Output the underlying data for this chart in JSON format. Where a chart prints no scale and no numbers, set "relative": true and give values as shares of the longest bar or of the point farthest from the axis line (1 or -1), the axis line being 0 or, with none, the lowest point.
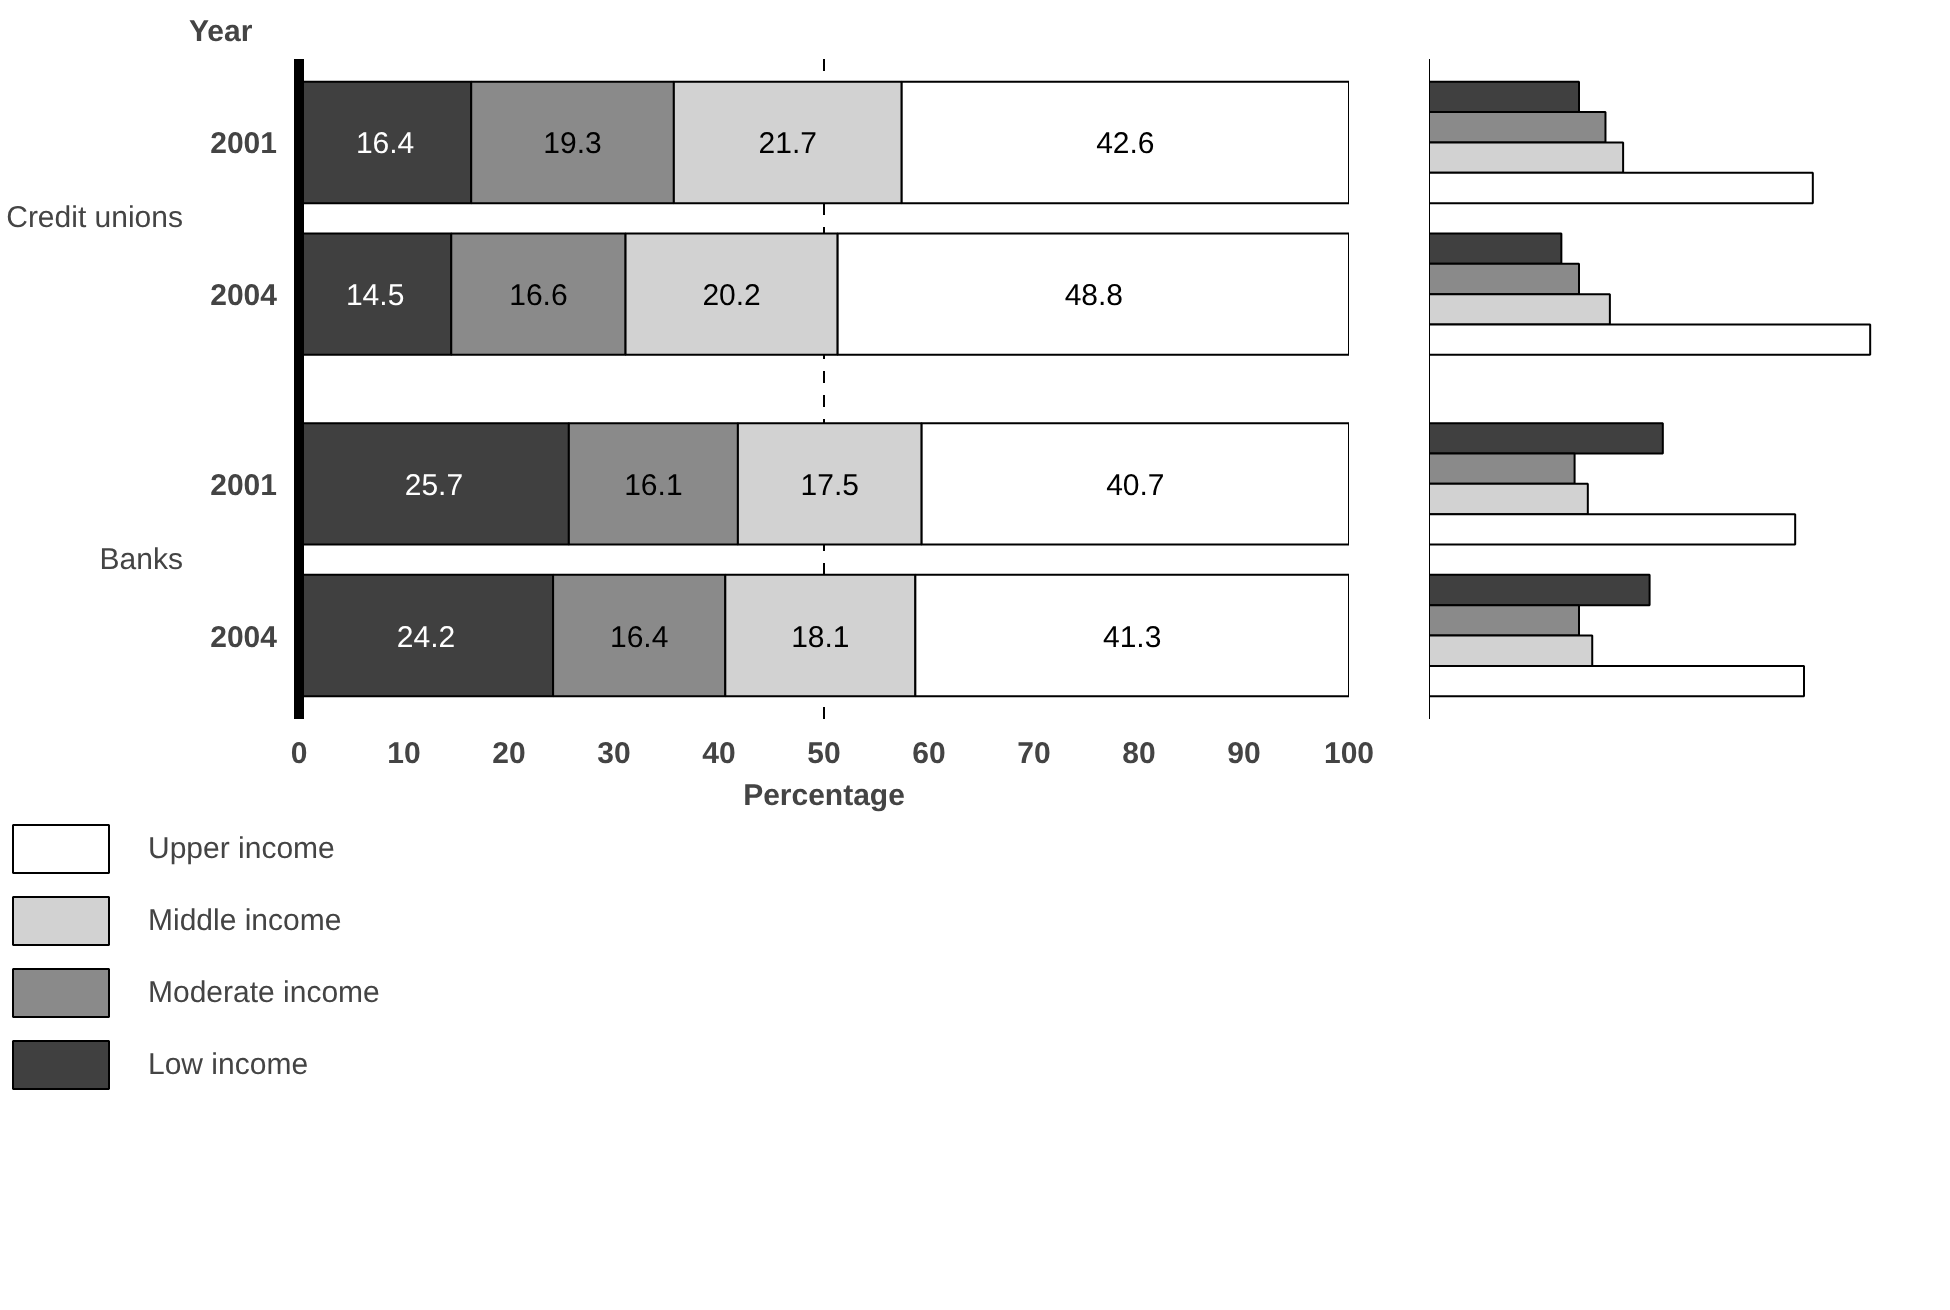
{
  "chart_data": [
    {
      "type": "bar",
      "orientation": "horizontal",
      "stacked": true,
      "ylabel": "Year",
      "xlabel": "Percentage",
      "categories": [
        "2001",
        "2004",
        "2001",
        "2004"
      ],
      "annotations": [
        "Credit unions",
        "Banks"
      ],
      "series": [
        {
          "name": "Low income",
          "color": "#404040",
          "values": [
            16.4,
            14.5,
            25.7,
            24.2
          ]
        },
        {
          "name": "Moderate income",
          "color": "#8a8a8a",
          "values": [
            19.3,
            16.6,
            16.1,
            16.4
          ]
        },
        {
          "name": "Middle income",
          "color": "#d2d2d2",
          "values": [
            21.7,
            20.2,
            17.5,
            18.1
          ]
        },
        {
          "name": "Upper income",
          "color": "#ffffff",
          "values": [
            42.6,
            48.8,
            40.7,
            41.3
          ]
        }
      ],
      "xlim": [
        0,
        100
      ],
      "xticks": [
        0,
        10,
        20,
        30,
        40,
        50,
        60,
        70,
        80,
        90,
        100
      ],
      "data_labels": true,
      "grid": false,
      "legend": "bottom",
      "ref_lines": [
        {
          "axis": "x",
          "value": 50,
          "line_style": "dashed",
          "color": "#000000"
        }
      ]
    },
    {
      "type": "bar",
      "orientation": "horizontal",
      "relative": true,
      "categories": [
        null,
        null,
        null,
        null
      ],
      "tick_labels": false,
      "series": [
        {
          "color": "#404040",
          "values": [
            0.34,
            0.3,
            0.53,
            0.5
          ]
        },
        {
          "color": "#8a8a8a",
          "values": [
            0.4,
            0.34,
            0.33,
            0.34
          ]
        },
        {
          "color": "#d2d2d2",
          "values": [
            0.44,
            0.41,
            0.36,
            0.37
          ]
        },
        {
          "color": "#ffffff",
          "values": [
            0.87,
            1.0,
            0.83,
            0.85
          ]
        }
      ]
    }
  ]
}
